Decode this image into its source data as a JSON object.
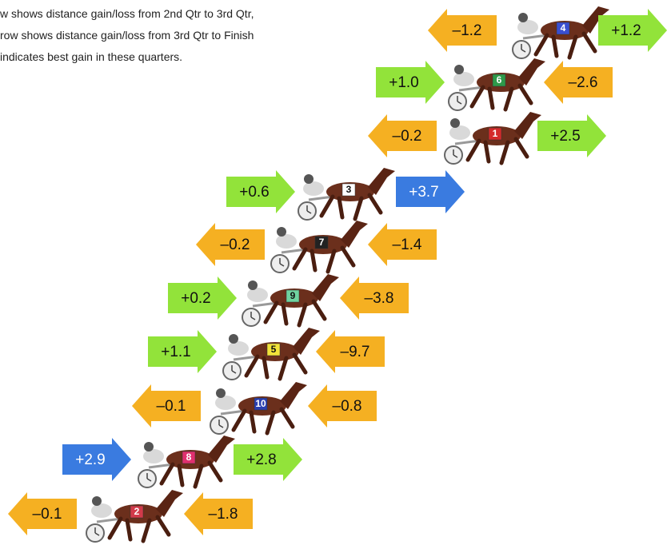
{
  "legend": {
    "lines": [
      "w shows distance gain/loss from 2nd Qtr to 3rd Qtr,",
      "row shows distance gain/loss from 3rd Qtr to Finish",
      " indicates best gain in these quarters."
    ]
  },
  "rows": [
    {
      "horse": "4",
      "cloth_color": "#3a4fd0",
      "left": {
        "label": "–1.2",
        "direction": "left",
        "color": "#f5b022"
      },
      "right": {
        "label": "+1.2",
        "direction": "right",
        "color": "#92e33a"
      }
    },
    {
      "horse": "6",
      "cloth_color": "#2e9a4a",
      "left": {
        "label": "+1.0",
        "direction": "right",
        "color": "#92e33a"
      },
      "right": {
        "label": "–2.6",
        "direction": "left",
        "color": "#f5b022"
      }
    },
    {
      "horse": "1",
      "cloth_color": "#d42a2a",
      "left": {
        "label": "–0.2",
        "direction": "left",
        "color": "#f5b022"
      },
      "right": {
        "label": "+2.5",
        "direction": "right",
        "color": "#92e33a"
      }
    },
    {
      "horse": "3",
      "cloth_color": "#ffffff",
      "left": {
        "label": "+0.6",
        "direction": "right",
        "color": "#92e33a"
      },
      "right": {
        "label": "+3.7",
        "direction": "right",
        "color": "#3a7be0"
      }
    },
    {
      "horse": "7",
      "cloth_color": "#222222",
      "left": {
        "label": "–0.2",
        "direction": "left",
        "color": "#f5b022"
      },
      "right": {
        "label": "–1.4",
        "direction": "left",
        "color": "#f5b022"
      }
    },
    {
      "horse": "9",
      "cloth_color": "#6fd3a0",
      "left": {
        "label": "+0.2",
        "direction": "right",
        "color": "#92e33a"
      },
      "right": {
        "label": "–3.8",
        "direction": "left",
        "color": "#f5b022"
      }
    },
    {
      "horse": "5",
      "cloth_color": "#f2e33a",
      "left": {
        "label": "+1.1",
        "direction": "right",
        "color": "#92e33a"
      },
      "right": {
        "label": "–9.7",
        "direction": "left",
        "color": "#f5b022"
      }
    },
    {
      "horse": "10",
      "cloth_color": "#2a3fb0",
      "left": {
        "label": "–0.1",
        "direction": "left",
        "color": "#f5b022"
      },
      "right": {
        "label": "–0.8",
        "direction": "left",
        "color": "#f5b022"
      }
    },
    {
      "horse": "8",
      "cloth_color": "#e0306f",
      "left": {
        "label": "+2.9",
        "direction": "right",
        "color": "#3a7be0"
      },
      "right": {
        "label": "+2.8",
        "direction": "right",
        "color": "#92e33a"
      }
    },
    {
      "horse": "2",
      "cloth_color": "#d23a4a",
      "left": {
        "label": "–0.1",
        "direction": "left",
        "color": "#f5b022"
      },
      "right": {
        "label": "–1.8",
        "direction": "left",
        "color": "#f5b022"
      }
    }
  ]
}
